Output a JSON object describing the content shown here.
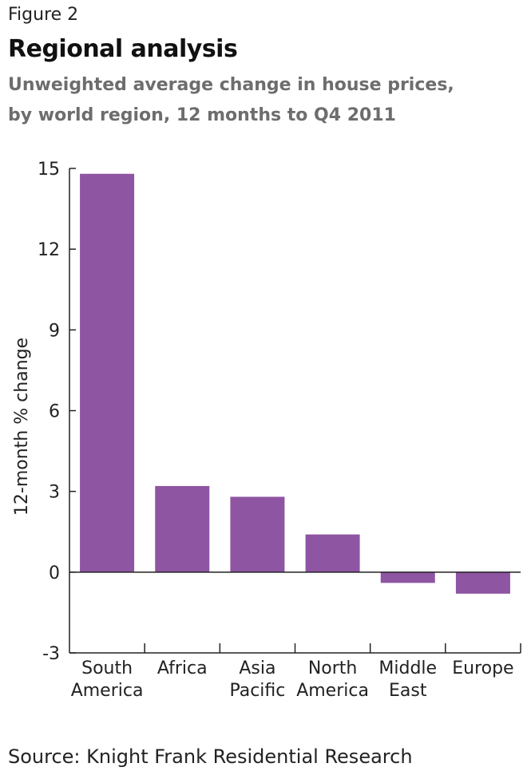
{
  "figure_label": "Figure 2",
  "title": "Regional analysis",
  "subtitle_line1": "Unweighted average change in house prices,",
  "subtitle_line2": "by world region, 12 months to Q4 2011",
  "source": "Source: Knight Frank Residential Research",
  "bar_color": "#8e55a2",
  "chart_data": {
    "type": "bar",
    "categories": [
      [
        "South",
        "America"
      ],
      [
        "Africa"
      ],
      [
        "Asia",
        "Pacific"
      ],
      [
        "North",
        "America"
      ],
      [
        "Middle",
        "East"
      ],
      [
        "Europe"
      ]
    ],
    "values": [
      14.8,
      3.2,
      2.8,
      1.4,
      -0.4,
      -0.8
    ],
    "ylabel": "12-month % change",
    "ylim": [
      -3,
      15
    ],
    "yticks": [
      -3,
      0,
      3,
      6,
      9,
      12,
      15
    ],
    "grid": false
  }
}
